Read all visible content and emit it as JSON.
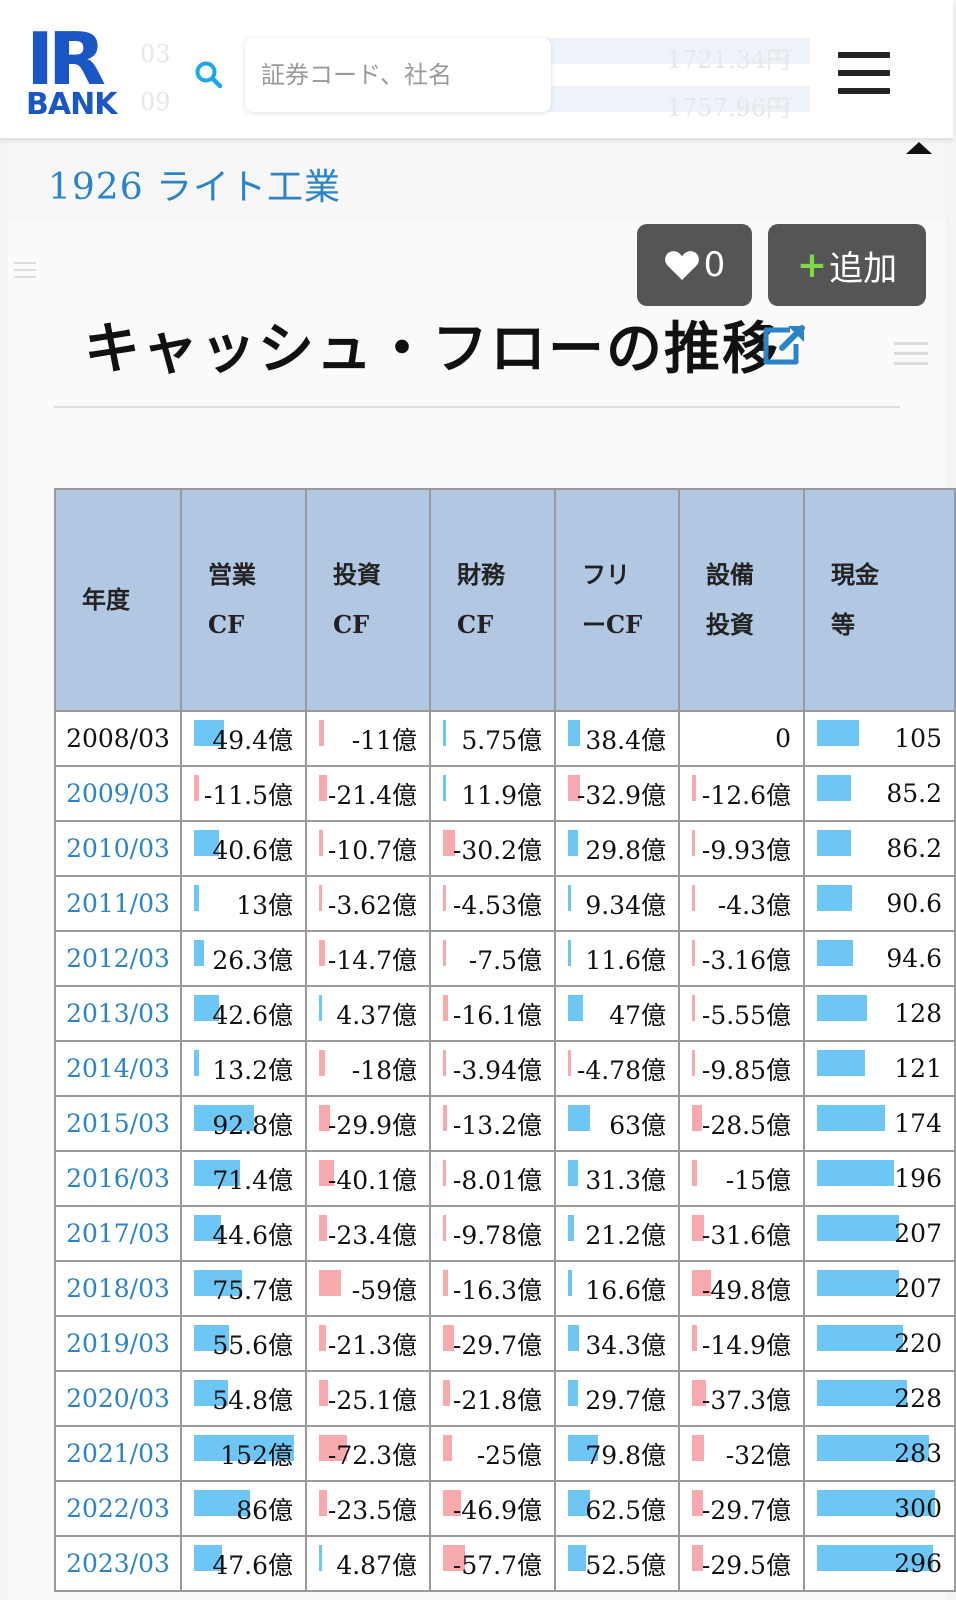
{
  "header": {
    "logo_top": "IR",
    "logo_bottom": "BANK",
    "search_placeholder": "証券コード、社名",
    "ghost_rows": [
      {
        "left": "03",
        "right": "1721.34円"
      },
      {
        "left": "09",
        "right": "1757.96円"
      }
    ]
  },
  "company": {
    "title": "1926 ライト工業"
  },
  "actions": {
    "like_count": "0",
    "add_label": "追加"
  },
  "section": {
    "title": "キャッシュ・フローの推移"
  },
  "colors": {
    "accent_blue": "#2a84c6",
    "header_cell": "#b1c7e2",
    "positive_bar": "#6ec6f5",
    "negative_bar": "#f7a9ad",
    "button_gray": "#555555",
    "plus_green": "#7dd94a"
  },
  "table": {
    "columns": [
      {
        "line1": "年度",
        "line2": ""
      },
      {
        "line1": "営業",
        "line2": "CF"
      },
      {
        "line1": "投資",
        "line2": "CF"
      },
      {
        "line1": "財務",
        "line2": "CF"
      },
      {
        "line1": "フリ",
        "line2": "ーCF"
      },
      {
        "line1": "設備",
        "line2": "投資"
      },
      {
        "line1": "現金",
        "line2": "等"
      }
    ],
    "rows": [
      {
        "year": "2008/03",
        "link": false,
        "cells": [
          {
            "text": "49.4億",
            "sign": "pos",
            "level": 0.3
          },
          {
            "text": "-11億",
            "sign": "neg",
            "level": 0.05
          },
          {
            "text": "5.75億",
            "sign": "pos",
            "level": 0.02
          },
          {
            "text": "38.4億",
            "sign": "pos",
            "level": 0.12
          },
          {
            "text": "0",
            "sign": "none",
            "level": 0
          },
          {
            "text": "105",
            "sign": "pos",
            "level": 0.35
          }
        ]
      },
      {
        "year": "2009/03",
        "link": true,
        "cells": [
          {
            "text": "-11.5億",
            "sign": "neg",
            "level": 0.05
          },
          {
            "text": "-21.4億",
            "sign": "neg",
            "level": 0.08
          },
          {
            "text": "11.9億",
            "sign": "pos",
            "level": 0.03
          },
          {
            "text": "-32.9億",
            "sign": "neg",
            "level": 0.12
          },
          {
            "text": "-12.6億",
            "sign": "neg",
            "level": 0.04
          },
          {
            "text": "85.2",
            "sign": "pos",
            "level": 0.28
          }
        ]
      },
      {
        "year": "2010/03",
        "link": true,
        "cells": [
          {
            "text": "40.6億",
            "sign": "pos",
            "level": 0.25
          },
          {
            "text": "-10.7億",
            "sign": "neg",
            "level": 0.04
          },
          {
            "text": "-30.2億",
            "sign": "neg",
            "level": 0.12
          },
          {
            "text": "29.8億",
            "sign": "pos",
            "level": 0.1
          },
          {
            "text": "-9.93億",
            "sign": "neg",
            "level": 0.03
          },
          {
            "text": "86.2",
            "sign": "pos",
            "level": 0.28
          }
        ]
      },
      {
        "year": "2011/03",
        "link": true,
        "cells": [
          {
            "text": "13億",
            "sign": "pos",
            "level": 0.05
          },
          {
            "text": "-3.62億",
            "sign": "neg",
            "level": 0.01
          },
          {
            "text": "-4.53億",
            "sign": "neg",
            "level": 0.01
          },
          {
            "text": "9.34億",
            "sign": "pos",
            "level": 0.02
          },
          {
            "text": "-4.3億",
            "sign": "neg",
            "level": 0.01
          },
          {
            "text": "90.6",
            "sign": "pos",
            "level": 0.29
          }
        ]
      },
      {
        "year": "2012/03",
        "link": true,
        "cells": [
          {
            "text": "26.3億",
            "sign": "pos",
            "level": 0.1
          },
          {
            "text": "-14.7億",
            "sign": "neg",
            "level": 0.06
          },
          {
            "text": "-7.5億",
            "sign": "neg",
            "level": 0.01
          },
          {
            "text": "11.6億",
            "sign": "pos",
            "level": 0.03
          },
          {
            "text": "-3.16億",
            "sign": "neg",
            "level": 0.01
          },
          {
            "text": "94.6",
            "sign": "pos",
            "level": 0.3
          }
        ]
      },
      {
        "year": "2013/03",
        "link": true,
        "cells": [
          {
            "text": "42.6億",
            "sign": "pos",
            "level": 0.25
          },
          {
            "text": "4.37億",
            "sign": "pos",
            "level": 0.01
          },
          {
            "text": "-16.1億",
            "sign": "neg",
            "level": 0.05
          },
          {
            "text": "47億",
            "sign": "pos",
            "level": 0.15
          },
          {
            "text": "-5.55億",
            "sign": "neg",
            "level": 0.01
          },
          {
            "text": "128",
            "sign": "pos",
            "level": 0.42
          }
        ]
      },
      {
        "year": "2014/03",
        "link": true,
        "cells": [
          {
            "text": "13.2億",
            "sign": "pos",
            "level": 0.05
          },
          {
            "text": "-18億",
            "sign": "neg",
            "level": 0.06
          },
          {
            "text": "-3.94億",
            "sign": "neg",
            "level": 0.01
          },
          {
            "text": "-4.78億",
            "sign": "neg",
            "level": 0.01
          },
          {
            "text": "-9.85億",
            "sign": "neg",
            "level": 0.03
          },
          {
            "text": "121",
            "sign": "pos",
            "level": 0.4
          }
        ]
      },
      {
        "year": "2015/03",
        "link": true,
        "cells": [
          {
            "text": "92.8億",
            "sign": "pos",
            "level": 0.6
          },
          {
            "text": "-29.9億",
            "sign": "neg",
            "level": 0.11
          },
          {
            "text": "-13.2億",
            "sign": "neg",
            "level": 0.04
          },
          {
            "text": "63億",
            "sign": "pos",
            "level": 0.22
          },
          {
            "text": "-28.5億",
            "sign": "neg",
            "level": 0.1
          },
          {
            "text": "174",
            "sign": "pos",
            "level": 0.57
          }
        ]
      },
      {
        "year": "2016/03",
        "link": true,
        "cells": [
          {
            "text": "71.4億",
            "sign": "pos",
            "level": 0.46
          },
          {
            "text": "-40.1億",
            "sign": "neg",
            "level": 0.15
          },
          {
            "text": "-8.01億",
            "sign": "neg",
            "level": 0.02
          },
          {
            "text": "31.3億",
            "sign": "pos",
            "level": 0.1
          },
          {
            "text": "-15億",
            "sign": "neg",
            "level": 0.05
          },
          {
            "text": "196",
            "sign": "pos",
            "level": 0.64
          }
        ]
      },
      {
        "year": "2017/03",
        "link": true,
        "cells": [
          {
            "text": "44.6億",
            "sign": "pos",
            "level": 0.27
          },
          {
            "text": "-23.4億",
            "sign": "neg",
            "level": 0.08
          },
          {
            "text": "-9.78億",
            "sign": "neg",
            "level": 0.02
          },
          {
            "text": "21.2億",
            "sign": "pos",
            "level": 0.06
          },
          {
            "text": "-31.6億",
            "sign": "neg",
            "level": 0.12
          },
          {
            "text": "207",
            "sign": "pos",
            "level": 0.68
          }
        ]
      },
      {
        "year": "2018/03",
        "link": true,
        "cells": [
          {
            "text": "75.7億",
            "sign": "pos",
            "level": 0.48
          },
          {
            "text": "-59億",
            "sign": "neg",
            "level": 0.22
          },
          {
            "text": "-16.3億",
            "sign": "neg",
            "level": 0.05
          },
          {
            "text": "16.6億",
            "sign": "pos",
            "level": 0.04
          },
          {
            "text": "-49.8億",
            "sign": "neg",
            "level": 0.19
          },
          {
            "text": "207",
            "sign": "pos",
            "level": 0.68
          }
        ]
      },
      {
        "year": "2019/03",
        "link": true,
        "cells": [
          {
            "text": "55.6億",
            "sign": "pos",
            "level": 0.35
          },
          {
            "text": "-21.3億",
            "sign": "neg",
            "level": 0.07
          },
          {
            "text": "-29.7億",
            "sign": "neg",
            "level": 0.11
          },
          {
            "text": "34.3億",
            "sign": "pos",
            "level": 0.11
          },
          {
            "text": "-14.9億",
            "sign": "neg",
            "level": 0.05
          },
          {
            "text": "220",
            "sign": "pos",
            "level": 0.72
          }
        ]
      },
      {
        "year": "2020/03",
        "link": true,
        "cells": [
          {
            "text": "54.8億",
            "sign": "pos",
            "level": 0.34
          },
          {
            "text": "-25.1億",
            "sign": "neg",
            "level": 0.09
          },
          {
            "text": "-21.8億",
            "sign": "neg",
            "level": 0.07
          },
          {
            "text": "29.7億",
            "sign": "pos",
            "level": 0.1
          },
          {
            "text": "-37.3億",
            "sign": "neg",
            "level": 0.14
          },
          {
            "text": "228",
            "sign": "pos",
            "level": 0.75
          }
        ]
      },
      {
        "year": "2021/03",
        "link": true,
        "cells": [
          {
            "text": "152億",
            "sign": "pos",
            "level": 1.0
          },
          {
            "text": "-72.3億",
            "sign": "neg",
            "level": 0.28
          },
          {
            "text": "-25億",
            "sign": "neg",
            "level": 0.09
          },
          {
            "text": "79.8億",
            "sign": "pos",
            "level": 0.3
          },
          {
            "text": "-32億",
            "sign": "neg",
            "level": 0.12
          },
          {
            "text": "283",
            "sign": "pos",
            "level": 0.93
          }
        ]
      },
      {
        "year": "2022/03",
        "link": true,
        "cells": [
          {
            "text": "86億",
            "sign": "pos",
            "level": 0.56
          },
          {
            "text": "-23.5億",
            "sign": "neg",
            "level": 0.08
          },
          {
            "text": "-46.9億",
            "sign": "neg",
            "level": 0.18
          },
          {
            "text": "62.5億",
            "sign": "pos",
            "level": 0.22
          },
          {
            "text": "-29.7億",
            "sign": "neg",
            "level": 0.11
          },
          {
            "text": "300",
            "sign": "pos",
            "level": 0.98
          }
        ]
      },
      {
        "year": "2023/03",
        "link": true,
        "cells": [
          {
            "text": "47.6億",
            "sign": "pos",
            "level": 0.28
          },
          {
            "text": "4.87億",
            "sign": "pos",
            "level": 0.01
          },
          {
            "text": "-57.7億",
            "sign": "neg",
            "level": 0.22
          },
          {
            "text": "52.5億",
            "sign": "pos",
            "level": 0.18
          },
          {
            "text": "-29.5億",
            "sign": "neg",
            "level": 0.11
          },
          {
            "text": "296",
            "sign": "pos",
            "level": 0.97
          }
        ]
      }
    ]
  }
}
